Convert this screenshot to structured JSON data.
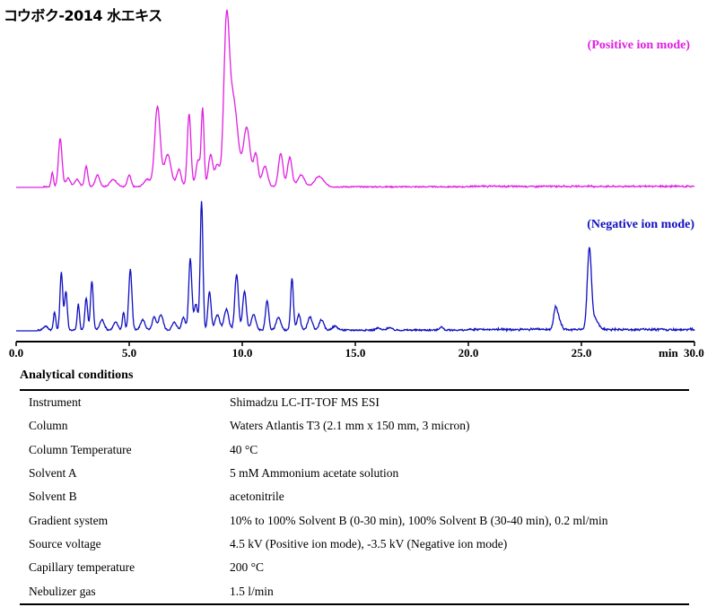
{
  "title": "コウボク-2014 水エキス",
  "chart_data": {
    "type": "line",
    "xlabel": "min",
    "xlim": [
      0,
      30
    ],
    "xticks": [
      "0.0",
      "5.0",
      "10.0",
      "15.0",
      "20.0",
      "25.0",
      "30.0"
    ],
    "baseline_pos": 0.0,
    "baseline_neg": 0.0,
    "series": [
      {
        "name": "(Positive ion mode)",
        "color": "#e020e0",
        "peaks": [
          [
            1.6,
            0.1,
            0.05
          ],
          [
            1.95,
            0.33,
            0.08
          ],
          [
            2.3,
            0.06,
            0.1
          ],
          [
            2.7,
            0.05,
            0.1
          ],
          [
            3.1,
            0.14,
            0.07
          ],
          [
            3.6,
            0.08,
            0.1
          ],
          [
            4.3,
            0.05,
            0.15
          ],
          [
            5.0,
            0.08,
            0.08
          ],
          [
            5.8,
            0.05,
            0.15
          ],
          [
            6.25,
            0.55,
            0.12
          ],
          [
            6.7,
            0.22,
            0.15
          ],
          [
            7.2,
            0.12,
            0.1
          ],
          [
            7.65,
            0.5,
            0.08
          ],
          [
            8.05,
            0.18,
            0.1
          ],
          [
            8.25,
            0.52,
            0.06
          ],
          [
            8.6,
            0.22,
            0.1
          ],
          [
            8.9,
            0.15,
            0.1
          ],
          [
            9.3,
            1.0,
            0.12
          ],
          [
            9.6,
            0.6,
            0.2
          ],
          [
            10.2,
            0.4,
            0.15
          ],
          [
            10.6,
            0.22,
            0.1
          ],
          [
            11.0,
            0.14,
            0.12
          ],
          [
            11.7,
            0.23,
            0.1
          ],
          [
            12.1,
            0.2,
            0.1
          ],
          [
            12.6,
            0.08,
            0.15
          ],
          [
            13.4,
            0.07,
            0.2
          ]
        ]
      },
      {
        "name": "(Negative ion mode)",
        "color": "#1010c0",
        "peaks": [
          [
            1.3,
            0.03,
            0.1
          ],
          [
            1.7,
            0.14,
            0.05
          ],
          [
            2.0,
            0.45,
            0.06
          ],
          [
            2.2,
            0.3,
            0.06
          ],
          [
            2.75,
            0.2,
            0.05
          ],
          [
            3.1,
            0.25,
            0.06
          ],
          [
            3.35,
            0.38,
            0.06
          ],
          [
            3.8,
            0.08,
            0.1
          ],
          [
            4.4,
            0.06,
            0.1
          ],
          [
            4.75,
            0.14,
            0.05
          ],
          [
            5.05,
            0.47,
            0.07
          ],
          [
            5.6,
            0.08,
            0.1
          ],
          [
            6.1,
            0.1,
            0.08
          ],
          [
            6.4,
            0.12,
            0.1
          ],
          [
            7.0,
            0.06,
            0.1
          ],
          [
            7.4,
            0.1,
            0.08
          ],
          [
            7.7,
            0.55,
            0.07
          ],
          [
            7.95,
            0.2,
            0.08
          ],
          [
            8.2,
            1.0,
            0.06
          ],
          [
            8.55,
            0.3,
            0.07
          ],
          [
            8.9,
            0.12,
            0.1
          ],
          [
            9.3,
            0.16,
            0.1
          ],
          [
            9.75,
            0.43,
            0.08
          ],
          [
            10.1,
            0.3,
            0.08
          ],
          [
            10.5,
            0.12,
            0.1
          ],
          [
            11.1,
            0.23,
            0.07
          ],
          [
            11.6,
            0.1,
            0.1
          ],
          [
            12.2,
            0.4,
            0.06
          ],
          [
            12.5,
            0.12,
            0.08
          ],
          [
            13.0,
            0.1,
            0.1
          ],
          [
            13.5,
            0.08,
            0.1
          ],
          [
            14.1,
            0.03,
            0.12
          ],
          [
            16.0,
            0.015,
            0.1
          ],
          [
            16.5,
            0.02,
            0.1
          ],
          [
            18.8,
            0.025,
            0.08
          ],
          [
            23.85,
            0.15,
            0.08
          ],
          [
            24.0,
            0.08,
            0.1
          ],
          [
            25.35,
            0.62,
            0.09
          ],
          [
            25.6,
            0.08,
            0.15
          ]
        ]
      }
    ]
  },
  "conditions": {
    "title": "Analytical conditions",
    "rows": [
      {
        "key": "Instrument",
        "value": "Shimadzu LC-IT-TOF MS ESI"
      },
      {
        "key": "Column",
        "value": "Waters Atlantis T3 (2.1 mm x 150 mm, 3 micron)"
      },
      {
        "key": "Column Temperature",
        "value": "40 °C"
      },
      {
        "key": "Solvent A",
        "value": "5 mM Ammonium acetate solution"
      },
      {
        "key": "Solvent B",
        "value": "acetonitrile"
      },
      {
        "key": "Gradient system",
        "value": "10% to 100% Solvent B (0-30 min), 100% Solvent B (30-40 min), 0.2 ml/min"
      },
      {
        "key": "Source voltage",
        "value": "4.5 kV (Positive ion mode), -3.5 kV (Negative ion mode)"
      },
      {
        "key": "Capillary temperature",
        "value": "200 °C"
      },
      {
        "key": "Nebulizer gas",
        "value": "1.5 l/min"
      }
    ]
  }
}
